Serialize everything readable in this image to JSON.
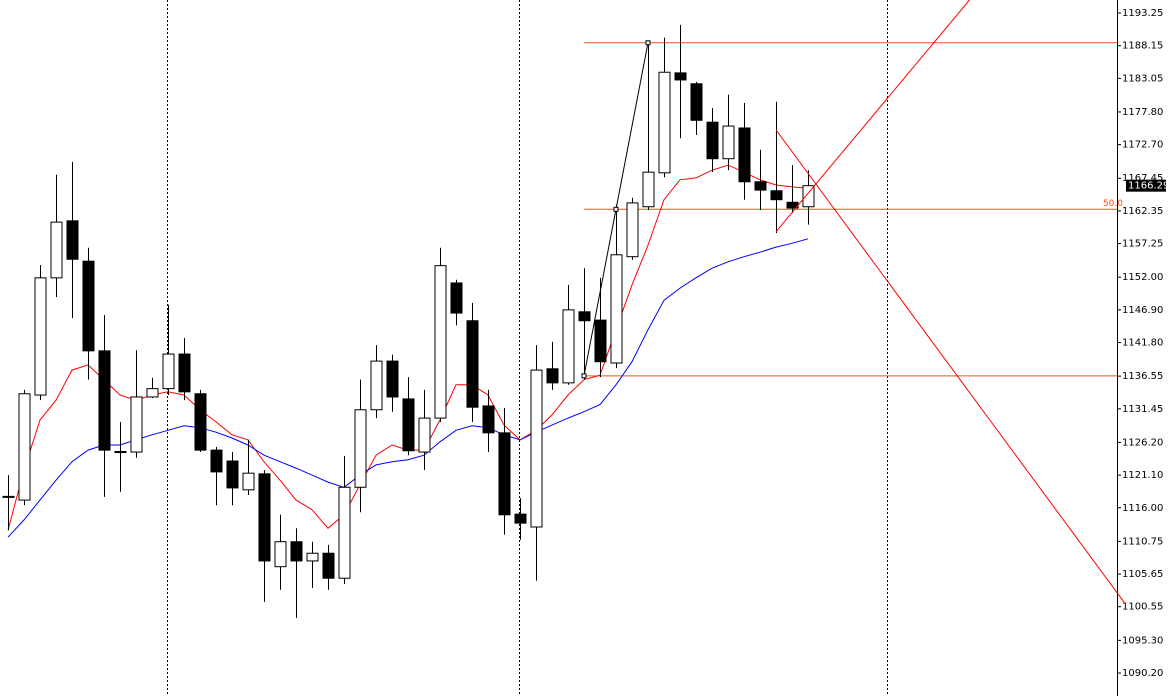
{
  "chart_data": {
    "type": "candlestick",
    "open": [
      1117.7,
      1117.2,
      1133.6,
      1151.9,
      1160.8,
      1154.5,
      1140.5,
      1124.7,
      1124.7,
      1133.3,
      1134.6,
      1140.0,
      1133.8,
      1125.0,
      1123.3,
      1118.8,
      1121.3,
      1106.8,
      1110.7,
      1107.7,
      1108.9,
      1105.0,
      1119.2,
      1131.3,
      1138.9,
      1133.0,
      1124.7,
      1130.0,
      1151.1,
      1145.2,
      1131.9,
      1127.7,
      1115.0,
      1113.0,
      1137.7,
      1135.5,
      1146.6,
      1145.3,
      1138.6,
      1155.2,
      1163.0,
      1168.3,
      1183.9,
      1182.2,
      1176.2,
      1170.5,
      1175.3,
      1166.9,
      1165.5,
      1163.7,
      1163.0
    ],
    "high": [
      1121.1,
      1134.4,
      1153.9,
      1168.0,
      1170.0,
      1156.6,
      1146.1,
      1129.4,
      1140.6,
      1136.3,
      1147.7,
      1142.5,
      1134.4,
      1125.5,
      1124.7,
      1126.6,
      1121.9,
      1114.9,
      1112.8,
      1110.7,
      1110.2,
      1124.1,
      1136.0,
      1141.4,
      1139.9,
      1136.4,
      1134.4,
      1156.6,
      1151.6,
      1148.0,
      1134.4,
      1131.6,
      1117.5,
      1141.4,
      1141.9,
      1150.8,
      1153.4,
      1151.9,
      1163.3,
      1164.4,
      1188.3,
      1189.4,
      1191.4,
      1182.5,
      1178.4,
      1180.5,
      1179.2,
      1171.9,
      1179.4,
      1169.5,
      1168.7
    ],
    "low": [
      1112.5,
      1116.4,
      1132.8,
      1148.9,
      1145.6,
      1136.0,
      1117.7,
      1118.5,
      1123.8,
      1133.1,
      1133.6,
      1132.8,
      1124.7,
      1116.4,
      1116.4,
      1118.0,
      1101.3,
      1103.2,
      1098.8,
      1103.5,
      1103.2,
      1104.1,
      1115.3,
      1130.0,
      1131.0,
      1124.2,
      1121.9,
      1129.4,
      1144.5,
      1129.4,
      1124.7,
      1111.8,
      1111.0,
      1104.6,
      1134.4,
      1135.2,
      1136.0,
      1136.4,
      1137.8,
      1154.7,
      1162.5,
      1167.6,
      1173.7,
      1174.2,
      1168.4,
      1168.7,
      1164.1,
      1162.5,
      1158.9,
      1162.0,
      1160.2
    ],
    "close": [
      1117.7,
      1133.8,
      1151.9,
      1160.6,
      1154.8,
      1140.5,
      1125.0,
      1124.7,
      1133.3,
      1134.6,
      1140.0,
      1134.1,
      1125.0,
      1121.6,
      1119.1,
      1121.4,
      1107.7,
      1110.7,
      1107.7,
      1108.9,
      1105.0,
      1119.2,
      1131.3,
      1138.9,
      1133.3,
      1124.9,
      1130.0,
      1153.8,
      1146.4,
      1131.7,
      1127.7,
      1114.9,
      1113.6,
      1137.5,
      1135.5,
      1146.9,
      1145.2,
      1138.8,
      1155.5,
      1163.6,
      1168.4,
      1184.0,
      1182.8,
      1176.5,
      1170.5,
      1175.6,
      1166.9,
      1165.6,
      1164.1,
      1162.8,
      1166.29
    ],
    "moving_averages": [
      {
        "color": "#ff0000",
        "values": [
          1112.5,
          1121.9,
          1129.7,
          1132.8,
          1137.5,
          1138.3,
          1136.0,
          1133.6,
          1132.8,
          1133.6,
          1134.1,
          1133.6,
          1131.3,
          1129.4,
          1127.4,
          1126.6,
          1123.2,
          1120.3,
          1117.2,
          1115.7,
          1112.8,
          1114.9,
          1119.6,
          1124.2,
          1125.8,
          1125.0,
          1125.0,
          1129.7,
          1135.2,
          1135.2,
          1133.6,
          1128.9,
          1126.6,
          1128.1,
          1130.5,
          1133.6,
          1136.0,
          1136.7,
          1143.8,
          1150.8,
          1157.0,
          1164.1,
          1167.2,
          1167.5,
          1168.7,
          1169.5,
          1168.4,
          1167.2,
          1166.4,
          1166.1,
          1165.9
        ]
      },
      {
        "color": "#0000ff",
        "values": [
          1111.4,
          1114.1,
          1117.2,
          1120.3,
          1123.2,
          1125.0,
          1125.8,
          1125.8,
          1126.6,
          1127.4,
          1128.1,
          1128.8,
          1128.5,
          1127.8,
          1126.9,
          1125.8,
          1124.2,
          1123.2,
          1122.2,
          1121.1,
          1120.0,
          1119.2,
          1121.1,
          1122.7,
          1123.2,
          1123.5,
          1124.2,
          1126.3,
          1128.1,
          1128.8,
          1128.5,
          1127.4,
          1126.6,
          1127.8,
          1128.9,
          1130.0,
          1131.0,
          1132.1,
          1135.2,
          1138.8,
          1143.8,
          1148.4,
          1150.3,
          1151.9,
          1153.4,
          1154.4,
          1155.2,
          1155.9,
          1156.7,
          1157.3,
          1158.0
        ]
      }
    ],
    "fibo_levels": [
      {
        "price": 1136.6
      },
      {
        "price": 1162.6,
        "label": "50.0"
      },
      {
        "price": 1188.6
      }
    ],
    "fibo_start": 36,
    "fibo_color": "#f4511e",
    "trend_lines": [
      {
        "color": "#000000",
        "x": [
          36,
          40
        ],
        "y": [
          1136.6,
          1188.6
        ]
      },
      {
        "color": "#ff0000",
        "x": [
          48,
          69.8
        ],
        "y": [
          1175.0,
          1101.1
        ]
      },
      {
        "color": "#ff0000",
        "x": [
          48,
          60.1
        ],
        "y": [
          1159.1,
          1195.3
        ]
      }
    ],
    "ylim": [
      1086.61,
      1195.28
    ],
    "yticks": [
      1193.25,
      1188.15,
      1183.05,
      {
        "value": 1177.8,
        "label": "1177.80"
      },
      {
        "value": 1172.7,
        "label": "1172.70"
      },
      1167.45,
      1162.35,
      1157.25,
      {
        "value": 1152,
        "label": "1152.00"
      },
      {
        "value": 1146.9,
        "label": "1146.90"
      },
      {
        "value": 1141.8,
        "label": "1141.80"
      },
      1136.55,
      1131.45,
      {
        "value": 1126.2,
        "label": "1126.20"
      },
      {
        "value": 1121.1,
        "label": "1121.10"
      },
      {
        "value": 1116,
        "label": "1116.00"
      },
      1110.75,
      1105.65,
      1100.55,
      {
        "value": 1095.3,
        "label": "1095.30"
      },
      {
        "value": 1090.2,
        "label": "1090.20"
      }
    ]
  }
}
